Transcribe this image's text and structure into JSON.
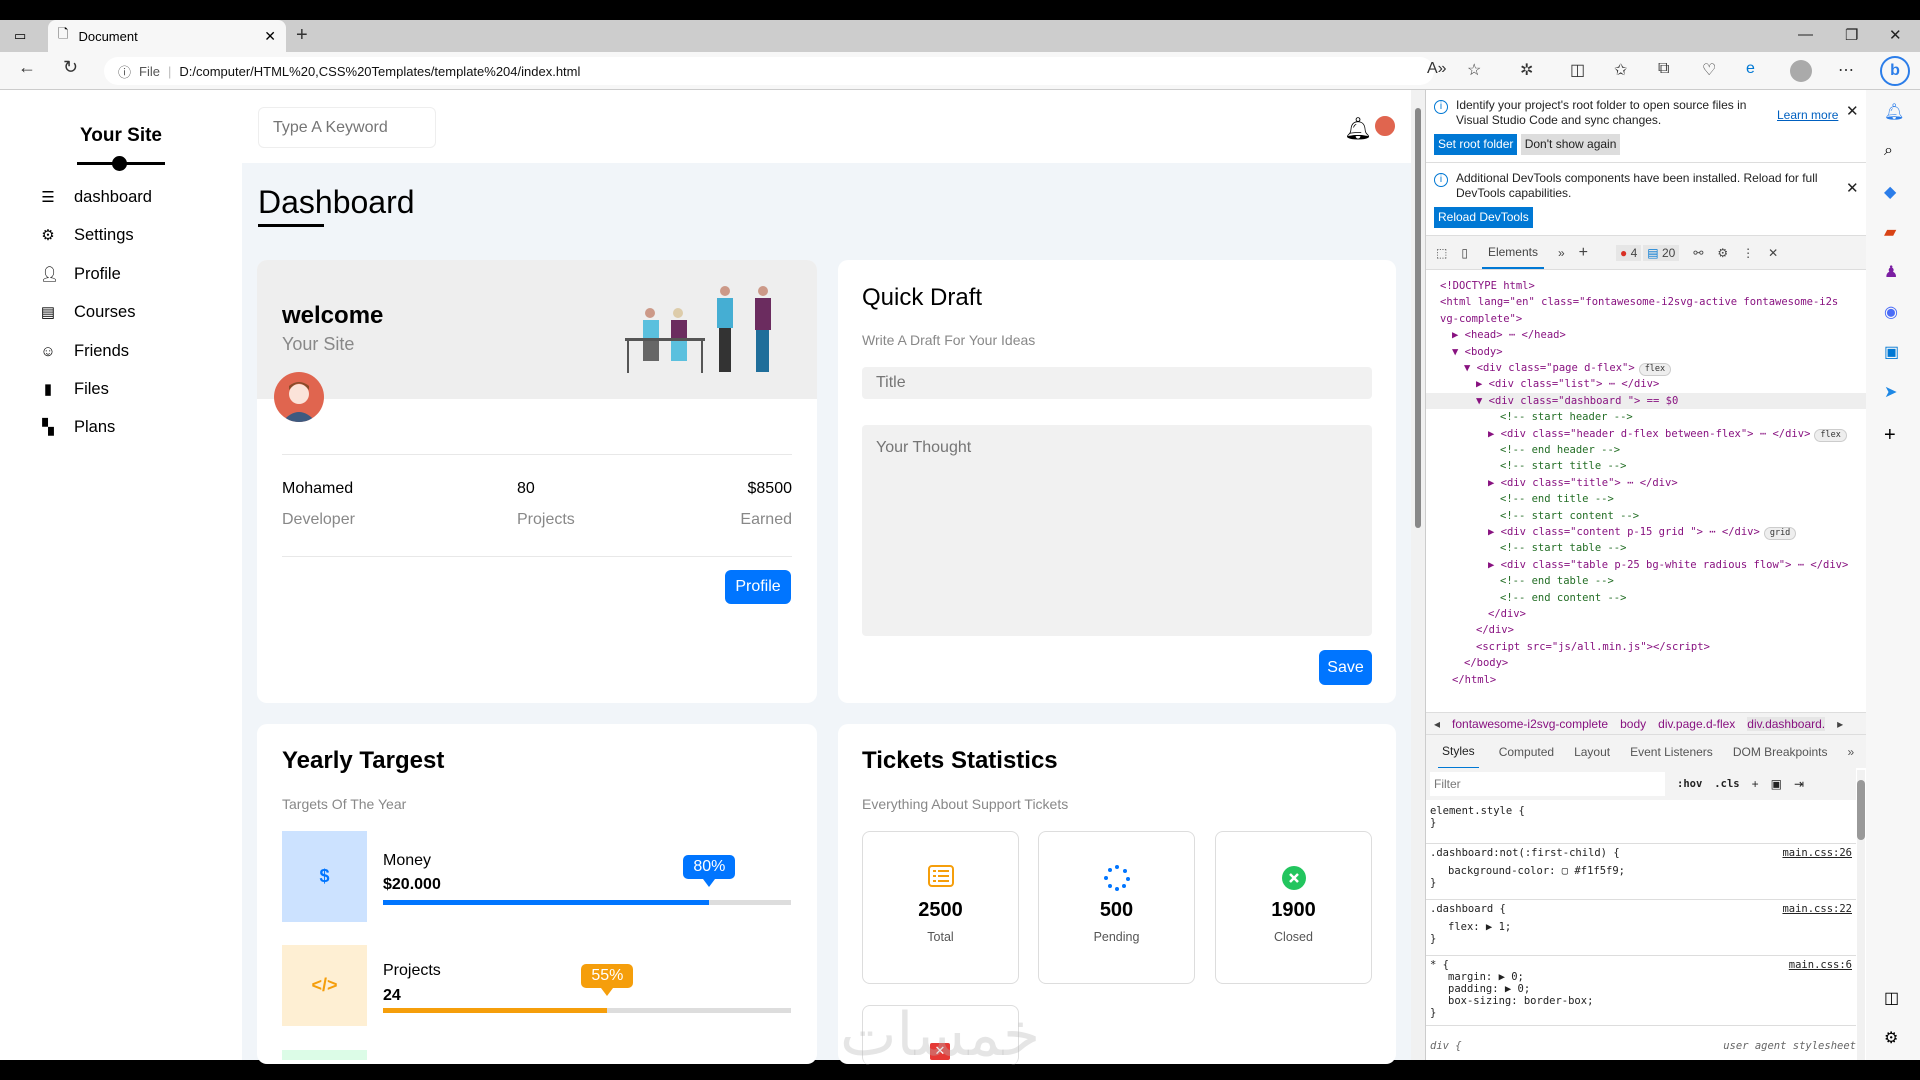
{
  "browser": {
    "tab_title": "Document",
    "address_prefix": "File",
    "url": "D:/computer/HTML%20,CSS%20Templates/template%204/index.html"
  },
  "sidebar": {
    "brand": "Your Site",
    "items": [
      {
        "label": "dashboard",
        "icon": "bars-icon"
      },
      {
        "label": "Settings",
        "icon": "gear-icon"
      },
      {
        "label": "Profile",
        "icon": "user-icon"
      },
      {
        "label": "Courses",
        "icon": "courses-icon"
      },
      {
        "label": "Friends",
        "icon": "smile-icon"
      },
      {
        "label": "Files",
        "icon": "file-icon"
      },
      {
        "label": "Plans",
        "icon": "plans-icon"
      }
    ]
  },
  "header": {
    "search_placeholder": "Type A Keyword"
  },
  "page_title": "Dashboard",
  "welcome": {
    "title": "welcome",
    "subtitle": "Your Site",
    "stats": [
      {
        "value": "Mohamed",
        "label": "Developer"
      },
      {
        "value": "80",
        "label": "Projects"
      },
      {
        "value": "$8500",
        "label": "Earned"
      }
    ],
    "button": "Profile"
  },
  "draft": {
    "title": "Quick Draft",
    "subtitle": "Write A Draft For Your Ideas",
    "title_placeholder": "Title",
    "thought_placeholder": "Your Thought",
    "button": "Save"
  },
  "yearly": {
    "title": "Yearly Targest",
    "subtitle": "Targets Of The Year",
    "items": [
      {
        "label": "Money",
        "value": "$20.000",
        "percent": 80,
        "percent_label": "80%",
        "color": "#0075ff",
        "bg": "#cce2ff",
        "icon": "dollar-icon",
        "glyph": "$"
      },
      {
        "label": "Projects",
        "value": "24",
        "percent": 55,
        "percent_label": "55%",
        "color": "#f59e0b",
        "bg": "#feefd3",
        "icon": "code-icon",
        "glyph": "</>"
      }
    ]
  },
  "tickets": {
    "title": "Tickets Statistics",
    "subtitle": "Everything About Support Tickets",
    "items": [
      {
        "value": "2500",
        "label": "Total",
        "icon": "list-icon",
        "color": "#f59e0b"
      },
      {
        "value": "500",
        "label": "Pending",
        "icon": "spinner-icon",
        "color": "#0075ff"
      },
      {
        "value": "1900",
        "label": "Closed",
        "icon": "close-circle-icon",
        "color": "#22c55e"
      }
    ]
  },
  "watermark": "خمسات",
  "devtools": {
    "notif1": {
      "text": "Identify your project's root folder to open source files in Visual Studio Code and sync changes.",
      "learn": "Learn more",
      "btn1": "Set root folder",
      "btn2": "Don't show again"
    },
    "notif2": {
      "text": "Additional DevTools components have been installed. Reload for full DevTools capabilities.",
      "btn": "Reload DevTools"
    },
    "tab": "Elements",
    "errors": "4",
    "messages": "20",
    "code": [
      {
        "i": 0,
        "t": "<!DOCTYPE html>"
      },
      {
        "i": 0,
        "t": "<html lang=\"en\" class=\"fontawesome-i2svg-active fontawesome-i2s"
      },
      {
        "i": 0,
        "t": "vg-complete\">"
      },
      {
        "i": 1,
        "t": "▶ <head> ⋯ </head>"
      },
      {
        "i": 1,
        "t": "▼ <body>"
      },
      {
        "i": 2,
        "t": "▼ <div class=\"page d-flex\">",
        "b": "flex"
      },
      {
        "i": 3,
        "t": "▶ <div class=\"list\"> ⋯ </div>"
      },
      {
        "i": 3,
        "t": "▼ <div class=\"dashboard \"> == $0",
        "sel": true
      },
      {
        "i": 5,
        "t": "<!-- start header -->",
        "c": true
      },
      {
        "i": 4,
        "t": "▶ <div class=\"header d-flex between-flex\"> ⋯ </div>",
        "b": "flex"
      },
      {
        "i": 5,
        "t": "<!-- end header -->",
        "c": true
      },
      {
        "i": 5,
        "t": "<!-- start title -->",
        "c": true
      },
      {
        "i": 4,
        "t": "▶ <div class=\"title\"> ⋯ </div>"
      },
      {
        "i": 5,
        "t": "<!-- end title -->",
        "c": true
      },
      {
        "i": 5,
        "t": "<!-- start content -->",
        "c": true
      },
      {
        "i": 4,
        "t": "▶ <div class=\"content p-15 grid \"> ⋯ </div>",
        "b": "grid"
      },
      {
        "i": 5,
        "t": "<!-- start table -->",
        "c": true
      },
      {
        "i": 4,
        "t": "▶ <div class=\"table p-25 bg-white radious flow\"> ⋯ </div>"
      },
      {
        "i": 5,
        "t": "<!-- end table -->",
        "c": true
      },
      {
        "i": 5,
        "t": "<!-- end content -->",
        "c": true
      },
      {
        "i": 4,
        "t": "</div>"
      },
      {
        "i": 3,
        "t": "</div>"
      },
      {
        "i": 3,
        "t": "<script src=\"js/all.min.js\"></script>"
      },
      {
        "i": 2,
        "t": "</body>"
      },
      {
        "i": 1,
        "t": "</html>"
      }
    ],
    "crumbs": [
      "fontawesome-i2svg-complete",
      "body",
      "div.page.d-flex",
      "div.dashboard."
    ],
    "style_tabs": [
      "Styles",
      "Computed",
      "Layout",
      "Event Listeners",
      "DOM Breakpoints"
    ],
    "filter": "Filter",
    "hov": ":hov",
    "cls": ".cls",
    "rules": [
      {
        "sel": "element.style {",
        "props": [],
        "src": ""
      },
      {
        "sel": ".dashboard:not(:first-child) {",
        "props": [
          "background-color: ▢ #f1f5f9;"
        ],
        "src": "main.css:26"
      },
      {
        "sel": ".dashboard {",
        "props": [
          "flex: ▶ 1;"
        ],
        "src": "main.css:22"
      },
      {
        "sel": "* {",
        "props": [
          "margin: ▶ 0;",
          "padding: ▶ 0;",
          "box-sizing: border-box;"
        ],
        "src": "main.css:6"
      }
    ],
    "ua": {
      "sel": "div {",
      "src": "user agent stylesheet"
    }
  }
}
